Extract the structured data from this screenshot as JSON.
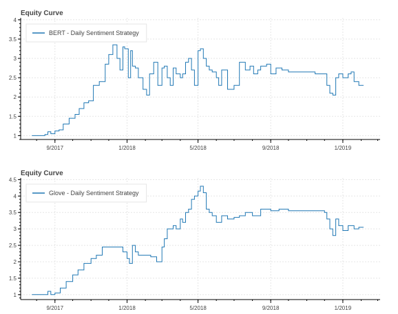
{
  "chart_data": [
    {
      "type": "line",
      "title": "Equity Curve",
      "x_tick_labels": [
        "9/2017",
        "1/2018",
        "5/2018",
        "9/2018",
        "1/2019"
      ],
      "x_ticks": [
        "2017-09-01",
        "2018-01-01",
        "2018-05-01",
        "2018-09-01",
        "2019-01-01"
      ],
      "xlim": [
        "2017-07-05",
        "2019-03-05"
      ],
      "ylim": [
        0.9,
        4.05
      ],
      "y_ticks": [
        1,
        1.5,
        2,
        2.5,
        3,
        3.5,
        4
      ],
      "grid": true,
      "legend_position": "top-left",
      "color": "#1f77b4",
      "series": [
        {
          "name": "BERT - Daily Sentiment Strategy",
          "x": [
            "2017-07-24",
            "2017-08-05",
            "2017-08-15",
            "2017-08-20",
            "2017-08-25",
            "2017-09-01",
            "2017-09-08",
            "2017-09-15",
            "2017-09-25",
            "2017-10-05",
            "2017-10-12",
            "2017-10-20",
            "2017-10-28",
            "2017-11-05",
            "2017-11-15",
            "2017-11-25",
            "2017-12-01",
            "2017-12-08",
            "2017-12-15",
            "2017-12-20",
            "2017-12-25",
            "2017-12-28",
            "2018-01-03",
            "2018-01-07",
            "2018-01-10",
            "2018-01-15",
            "2018-01-20",
            "2018-01-28",
            "2018-02-03",
            "2018-02-08",
            "2018-02-15",
            "2018-02-22",
            "2018-03-01",
            "2018-03-05",
            "2018-03-10",
            "2018-03-15",
            "2018-03-20",
            "2018-03-25",
            "2018-04-01",
            "2018-04-05",
            "2018-04-10",
            "2018-04-15",
            "2018-04-20",
            "2018-04-25",
            "2018-05-01",
            "2018-05-05",
            "2018-05-10",
            "2018-05-15",
            "2018-05-20",
            "2018-05-25",
            "2018-06-01",
            "2018-06-05",
            "2018-06-10",
            "2018-06-20",
            "2018-07-01",
            "2018-07-10",
            "2018-07-20",
            "2018-07-28",
            "2018-08-03",
            "2018-08-10",
            "2018-08-15",
            "2018-08-25",
            "2018-09-01",
            "2018-09-10",
            "2018-09-20",
            "2018-10-01",
            "2018-10-15",
            "2018-11-01",
            "2018-11-15",
            "2018-11-25",
            "2018-12-01",
            "2018-12-05",
            "2018-12-10",
            "2018-12-15",
            "2018-12-20",
            "2018-12-25",
            "2019-01-01",
            "2019-01-10",
            "2019-01-15",
            "2019-01-20",
            "2019-01-28",
            "2019-02-05"
          ],
          "values": [
            1.0,
            1.0,
            1.03,
            1.1,
            1.05,
            1.12,
            1.15,
            1.3,
            1.45,
            1.55,
            1.7,
            1.85,
            1.9,
            2.3,
            2.4,
            2.85,
            3.1,
            3.35,
            3.0,
            2.7,
            3.3,
            3.25,
            2.5,
            3.2,
            2.8,
            2.75,
            2.5,
            2.2,
            2.05,
            2.6,
            2.9,
            2.3,
            2.75,
            2.8,
            2.5,
            2.3,
            2.75,
            2.6,
            2.5,
            2.6,
            2.9,
            3.0,
            2.7,
            2.3,
            3.2,
            3.25,
            3.0,
            2.8,
            2.7,
            2.65,
            2.5,
            2.3,
            2.7,
            2.2,
            2.3,
            2.9,
            2.7,
            2.8,
            2.6,
            2.7,
            2.8,
            2.85,
            2.6,
            2.75,
            2.7,
            2.65,
            2.65,
            2.65,
            2.6,
            2.6,
            2.6,
            2.3,
            2.1,
            2.05,
            2.5,
            2.6,
            2.5,
            2.6,
            2.65,
            2.4,
            2.3,
            2.3
          ]
        }
      ]
    },
    {
      "type": "line",
      "title": "Equity Curve",
      "x_tick_labels": [
        "9/2017",
        "1/2018",
        "5/2018",
        "9/2018",
        "1/2019"
      ],
      "x_ticks": [
        "2017-09-01",
        "2018-01-01",
        "2018-05-01",
        "2018-09-01",
        "2019-01-01"
      ],
      "xlim": [
        "2017-07-05",
        "2019-03-05"
      ],
      "ylim": [
        0.85,
        4.55
      ],
      "y_ticks": [
        1,
        1.5,
        2,
        2.5,
        3,
        3.5,
        4,
        4.5
      ],
      "grid": true,
      "legend_position": "top-left",
      "color": "#1f77b4",
      "series": [
        {
          "name": "Glove - Daily Sentiment Strategy",
          "x": [
            "2017-07-24",
            "2017-08-10",
            "2017-08-20",
            "2017-08-25",
            "2017-09-01",
            "2017-09-10",
            "2017-09-20",
            "2017-10-01",
            "2017-10-10",
            "2017-10-20",
            "2017-11-01",
            "2017-11-10",
            "2017-11-20",
            "2017-12-01",
            "2017-12-15",
            "2017-12-25",
            "2018-01-01",
            "2018-01-05",
            "2018-01-10",
            "2018-01-15",
            "2018-01-20",
            "2018-02-01",
            "2018-02-10",
            "2018-02-20",
            "2018-03-01",
            "2018-03-05",
            "2018-03-10",
            "2018-03-20",
            "2018-03-25",
            "2018-04-01",
            "2018-04-05",
            "2018-04-10",
            "2018-04-15",
            "2018-04-20",
            "2018-04-25",
            "2018-05-01",
            "2018-05-05",
            "2018-05-10",
            "2018-05-15",
            "2018-05-20",
            "2018-05-25",
            "2018-06-01",
            "2018-06-10",
            "2018-06-20",
            "2018-07-01",
            "2018-07-10",
            "2018-07-20",
            "2018-08-01",
            "2018-08-15",
            "2018-09-01",
            "2018-09-15",
            "2018-10-01",
            "2018-10-15",
            "2018-11-01",
            "2018-11-15",
            "2018-11-25",
            "2018-12-01",
            "2018-12-05",
            "2018-12-10",
            "2018-12-15",
            "2018-12-20",
            "2018-12-25",
            "2019-01-01",
            "2019-01-10",
            "2019-01-20",
            "2019-01-28",
            "2019-02-05"
          ],
          "values": [
            1.0,
            1.0,
            1.1,
            1.0,
            1.05,
            1.2,
            1.4,
            1.6,
            1.75,
            1.95,
            2.1,
            2.2,
            2.45,
            2.45,
            2.45,
            2.3,
            2.1,
            1.95,
            2.5,
            2.3,
            2.2,
            2.2,
            2.15,
            2.0,
            2.45,
            2.7,
            3.0,
            3.1,
            3.0,
            3.3,
            3.2,
            3.5,
            3.6,
            3.9,
            4.0,
            4.15,
            4.3,
            4.1,
            3.6,
            3.5,
            3.4,
            3.2,
            3.4,
            3.3,
            3.35,
            3.4,
            3.5,
            3.4,
            3.6,
            3.55,
            3.6,
            3.55,
            3.55,
            3.55,
            3.55,
            3.55,
            3.5,
            3.3,
            3.0,
            2.8,
            3.3,
            3.1,
            2.95,
            3.1,
            3.0,
            3.05,
            3.05
          ]
        }
      ]
    }
  ]
}
